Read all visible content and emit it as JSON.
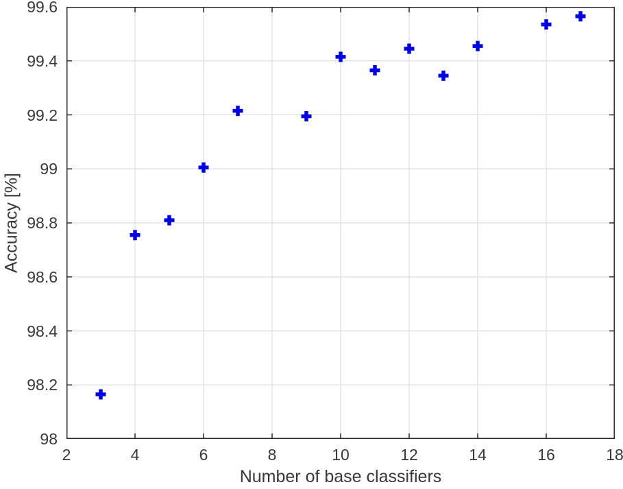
{
  "chart_data": {
    "type": "scatter",
    "title": "",
    "xlabel": "Number of base classifiers",
    "ylabel": "Accuracy [%]",
    "xlim": [
      2,
      18
    ],
    "ylim": [
      98,
      99.6
    ],
    "xticks": [
      2,
      4,
      6,
      8,
      10,
      12,
      14,
      16,
      18
    ],
    "xtick_labels": [
      "2",
      "4",
      "6",
      "8",
      "10",
      "12",
      "14",
      "16",
      "18"
    ],
    "yticks": [
      98,
      98.2,
      98.4,
      98.6,
      98.8,
      99,
      99.2,
      99.4,
      99.6
    ],
    "ytick_labels": [
      "98",
      "98.2",
      "98.4",
      "98.6",
      "98.8",
      "99",
      "99.2",
      "99.4",
      "99.6"
    ],
    "grid": true,
    "legend_position": "none",
    "series": [
      {
        "name": "accuracy-vs-classifiers",
        "marker": "plus",
        "marker_color": "#0000E6",
        "marker_size": 15,
        "marker_stroke_width": 5.5,
        "points": [
          [
            3,
            98.165
          ],
          [
            4,
            98.755
          ],
          [
            5,
            98.81
          ],
          [
            6,
            99.005
          ],
          [
            7,
            99.215
          ],
          [
            9,
            99.195
          ],
          [
            10,
            99.415
          ],
          [
            11,
            99.365
          ],
          [
            12,
            99.445
          ],
          [
            13,
            99.345
          ],
          [
            14,
            99.455
          ],
          [
            16,
            99.535
          ],
          [
            17,
            99.565
          ]
        ]
      }
    ],
    "colors": {
      "grid": "#dedede",
      "axis": "#2b2b2b",
      "text": "#383838",
      "background": "#ffffff"
    },
    "tick_length": 8,
    "tick_direction": "in",
    "box": true
  }
}
